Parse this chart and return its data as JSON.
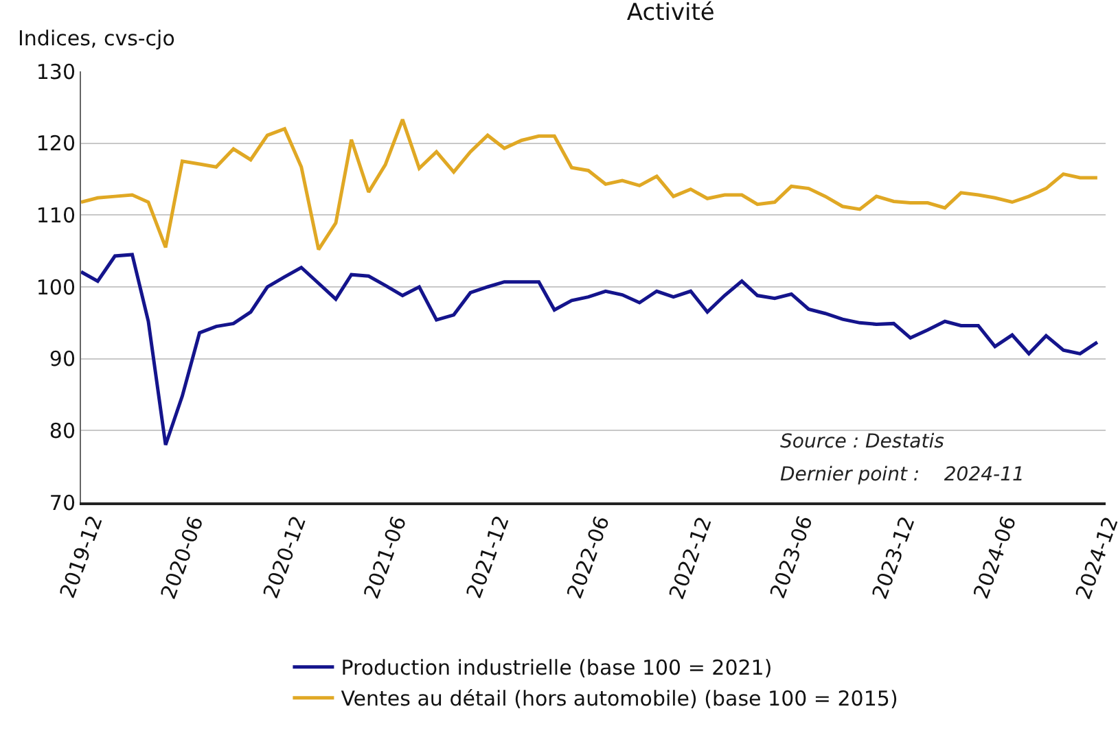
{
  "chart_data": {
    "type": "line",
    "title": "Activité",
    "ylabel": "Indices, cvs-cjo",
    "x": [
      "2019-11",
      "2019-12",
      "2020-01",
      "2020-02",
      "2020-03",
      "2020-04",
      "2020-05",
      "2020-06",
      "2020-07",
      "2020-08",
      "2020-09",
      "2020-10",
      "2020-11",
      "2020-12",
      "2021-01",
      "2021-02",
      "2021-03",
      "2021-04",
      "2021-05",
      "2021-06",
      "2021-07",
      "2021-08",
      "2021-09",
      "2021-10",
      "2021-11",
      "2021-12",
      "2022-01",
      "2022-02",
      "2022-03",
      "2022-04",
      "2022-05",
      "2022-06",
      "2022-07",
      "2022-08",
      "2022-09",
      "2022-10",
      "2022-11",
      "2022-12",
      "2023-01",
      "2023-02",
      "2023-03",
      "2023-04",
      "2023-05",
      "2023-06",
      "2023-07",
      "2023-08",
      "2023-09",
      "2023-10",
      "2023-11",
      "2023-12",
      "2024-01",
      "2024-02",
      "2024-03",
      "2024-04",
      "2024-05",
      "2024-06",
      "2024-07",
      "2024-08",
      "2024-09",
      "2024-10",
      "2024-11"
    ],
    "series": [
      {
        "name": "Production industrielle (base 100 = 2021)",
        "color": "#14148c",
        "values": [
          102.1,
          100.8,
          104.3,
          104.5,
          95.2,
          78.0,
          84.8,
          93.6,
          94.5,
          94.9,
          96.5,
          100.0,
          101.4,
          102.7,
          100.5,
          98.3,
          101.7,
          101.5,
          100.2,
          98.8,
          100.0,
          95.4,
          96.1,
          99.2,
          100.0,
          100.7,
          100.7,
          100.7,
          96.8,
          98.1,
          98.6,
          99.4,
          98.9,
          97.8,
          99.4,
          98.6,
          99.4,
          96.5,
          98.8,
          100.8,
          98.8,
          98.4,
          99.0,
          96.9,
          96.3,
          95.5,
          95.0,
          94.8,
          94.9,
          92.9,
          94.0,
          95.2,
          94.6,
          94.6,
          91.7,
          93.3,
          90.7,
          93.2,
          91.2,
          90.7,
          92.3
        ]
      },
      {
        "name": "Ventes au détail (hors automobile) (base 100 = 2015)",
        "color": "#e0a824",
        "values": [
          111.8,
          112.4,
          112.6,
          112.8,
          111.8,
          105.5,
          117.5,
          117.1,
          116.7,
          119.2,
          117.7,
          121.1,
          122.0,
          116.7,
          105.2,
          108.9,
          120.5,
          113.2,
          117.0,
          123.3,
          116.5,
          118.8,
          116.0,
          118.8,
          121.1,
          119.3,
          120.4,
          121.0,
          121.0,
          116.6,
          116.2,
          114.3,
          114.8,
          114.1,
          115.4,
          112.6,
          113.6,
          112.3,
          112.8,
          112.8,
          111.5,
          111.8,
          114.0,
          113.7,
          112.6,
          111.2,
          110.8,
          112.6,
          111.9,
          111.7,
          111.7,
          111.0,
          113.1,
          112.8,
          112.4,
          111.8,
          112.6,
          113.7,
          115.7,
          115.2,
          115.2
        ]
      }
    ],
    "xlim": [
      "2019-11",
      "2024-11-16"
    ],
    "xticks": [
      {
        "value": "2019-11",
        "label": "2019-12"
      },
      {
        "value": "2020-05",
        "label": "2020-06"
      },
      {
        "value": "2020-11",
        "label": "2020-12"
      },
      {
        "value": "2021-05",
        "label": "2021-06"
      },
      {
        "value": "2021-11",
        "label": "2021-12"
      },
      {
        "value": "2022-05",
        "label": "2022-06"
      },
      {
        "value": "2022-11",
        "label": "2022-12"
      },
      {
        "value": "2023-05",
        "label": "2023-06"
      },
      {
        "value": "2023-11",
        "label": "2023-12"
      },
      {
        "value": "2024-05",
        "label": "2024-06"
      },
      {
        "value": "2024-11",
        "label": "2024-12"
      }
    ],
    "ylim": [
      70,
      130
    ],
    "yticks": [
      70,
      80,
      90,
      100,
      110,
      120,
      130
    ],
    "grid": "y",
    "legend": "bottom",
    "marker": "none",
    "line_style": "solid",
    "annotations": [
      "Source : Destatis",
      "Dernier point :    2024-11"
    ]
  }
}
